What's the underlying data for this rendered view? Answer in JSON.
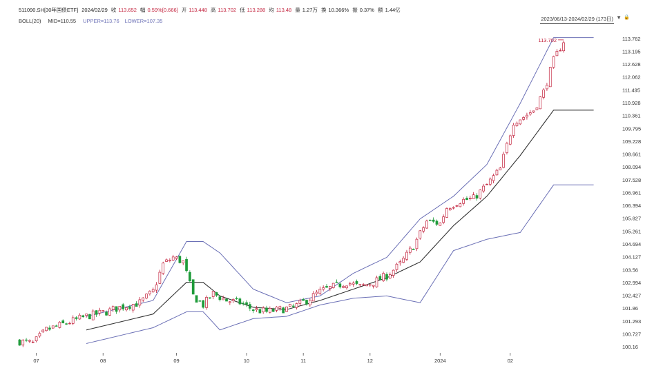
{
  "header": {
    "code": "511090.SH[30年国债ETF]",
    "date": "2024/02/29",
    "close_label": "收",
    "close_value": "113.652",
    "change_label": "幅",
    "change_value": "0.59%[0.666]",
    "open_label": "开",
    "open_value": "113.448",
    "high_label": "高",
    "high_value": "113.702",
    "low_label": "低",
    "low_value": "113.288",
    "avg_label": "均",
    "avg_value": "113.48",
    "volume_label": "量",
    "volume_value": "1.27万",
    "turnover_label": "换",
    "turnover_value": "10.366%",
    "amplitude_label": "振",
    "amplitude_value": "0.37%",
    "amount_label": "额",
    "amount_value": "1.44亿"
  },
  "boll": {
    "name": "BOLL(20)",
    "mid": "MID=110.55",
    "upper": "UPPER=113.76",
    "lower": "LOWER=107.35"
  },
  "toolbar": {
    "date_range": "2023/06/13-2024/02/29 (173日)",
    "dropdown_glyph": "▼",
    "lock_glyph": "🔒"
  },
  "chart_data": {
    "type": "candlestick",
    "title": "511090.SH[30年国债ETF]",
    "ylim": [
      99.95,
      114.0
    ],
    "yticks": [
      "113.762",
      "113.195",
      "112.628",
      "112.062",
      "111.495",
      "110.928",
      "110.361",
      "109.795",
      "109.228",
      "108.661",
      "108.094",
      "107.528",
      "106.961",
      "106.394",
      "105.827",
      "105.261",
      "104.694",
      "104.127",
      "103.56",
      "102.994",
      "102.427",
      "101.86",
      "101.293",
      "100.727",
      "100.16"
    ],
    "ytick_values": [
      113.762,
      113.195,
      112.628,
      112.062,
      111.495,
      110.928,
      110.361,
      109.795,
      109.228,
      108.661,
      108.094,
      107.528,
      106.961,
      106.394,
      105.827,
      105.261,
      104.694,
      104.127,
      103.56,
      102.994,
      102.427,
      101.86,
      101.293,
      100.727,
      100.16
    ],
    "xticks": [
      {
        "label": "07",
        "index": 5
      },
      {
        "label": "08",
        "index": 25
      },
      {
        "label": "09",
        "index": 47
      },
      {
        "label": "10",
        "index": 68
      },
      {
        "label": "11",
        "index": 85
      },
      {
        "label": "12",
        "index": 105
      },
      {
        "label": "2024",
        "index": 126
      },
      {
        "label": "02",
        "index": 147
      }
    ],
    "count": 173,
    "max_label": "113.702",
    "up_color": "#c21f3a",
    "down_color": "#1f9b3a",
    "mid_color": "#333333",
    "band_color": "#6a6fb5",
    "mid_anchors": [
      [
        20,
        100.9
      ],
      [
        40,
        101.6
      ],
      [
        50,
        103.0
      ],
      [
        55,
        103.0
      ],
      [
        60,
        102.4
      ],
      [
        70,
        101.9
      ],
      [
        80,
        101.8
      ],
      [
        90,
        102.2
      ],
      [
        100,
        102.7
      ],
      [
        110,
        103.2
      ],
      [
        120,
        103.9
      ],
      [
        130,
        105.5
      ],
      [
        140,
        106.8
      ],
      [
        150,
        108.6
      ],
      [
        160,
        110.6
      ]
    ],
    "upper_anchors": [
      [
        20,
        101.5
      ],
      [
        40,
        102.2
      ],
      [
        50,
        104.8
      ],
      [
        55,
        104.8
      ],
      [
        60,
        104.3
      ],
      [
        70,
        102.7
      ],
      [
        80,
        102.1
      ],
      [
        90,
        102.4
      ],
      [
        100,
        103.4
      ],
      [
        110,
        104.1
      ],
      [
        120,
        105.8
      ],
      [
        130,
        106.8
      ],
      [
        140,
        108.2
      ],
      [
        150,
        110.9
      ],
      [
        160,
        113.8
      ]
    ],
    "lower_anchors": [
      [
        20,
        100.3
      ],
      [
        40,
        101.0
      ],
      [
        50,
        101.7
      ],
      [
        55,
        101.7
      ],
      [
        60,
        100.9
      ],
      [
        70,
        101.4
      ],
      [
        80,
        101.5
      ],
      [
        90,
        102.0
      ],
      [
        100,
        102.3
      ],
      [
        110,
        102.4
      ],
      [
        120,
        102.1
      ],
      [
        130,
        104.4
      ],
      [
        140,
        104.9
      ],
      [
        150,
        105.2
      ],
      [
        160,
        107.3
      ]
    ],
    "close_anchors": [
      [
        0,
        100.4
      ],
      [
        4,
        100.3
      ],
      [
        8,
        100.9
      ],
      [
        14,
        101.2
      ],
      [
        20,
        101.5
      ],
      [
        26,
        101.7
      ],
      [
        30,
        101.9
      ],
      [
        36,
        102.1
      ],
      [
        40,
        102.6
      ],
      [
        43,
        103.8
      ],
      [
        46,
        104.1
      ],
      [
        49,
        103.9
      ],
      [
        52,
        102.4
      ],
      [
        55,
        102.0
      ],
      [
        58,
        102.5
      ],
      [
        62,
        102.2
      ],
      [
        66,
        102.1
      ],
      [
        70,
        101.8
      ],
      [
        74,
        101.7
      ],
      [
        78,
        101.8
      ],
      [
        82,
        101.9
      ],
      [
        86,
        102.2
      ],
      [
        90,
        102.6
      ],
      [
        94,
        102.8
      ],
      [
        98,
        103.0
      ],
      [
        102,
        102.8
      ],
      [
        106,
        103.0
      ],
      [
        110,
        103.3
      ],
      [
        114,
        103.8
      ],
      [
        118,
        104.6
      ],
      [
        122,
        105.7
      ],
      [
        126,
        105.6
      ],
      [
        128,
        106.3
      ],
      [
        132,
        106.6
      ],
      [
        136,
        106.7
      ],
      [
        140,
        107.3
      ],
      [
        144,
        108.0
      ],
      [
        148,
        110.1
      ],
      [
        151,
        110.3
      ],
      [
        154,
        110.6
      ],
      [
        157,
        111.4
      ],
      [
        160,
        112.8
      ],
      [
        163,
        113.65
      ]
    ]
  }
}
